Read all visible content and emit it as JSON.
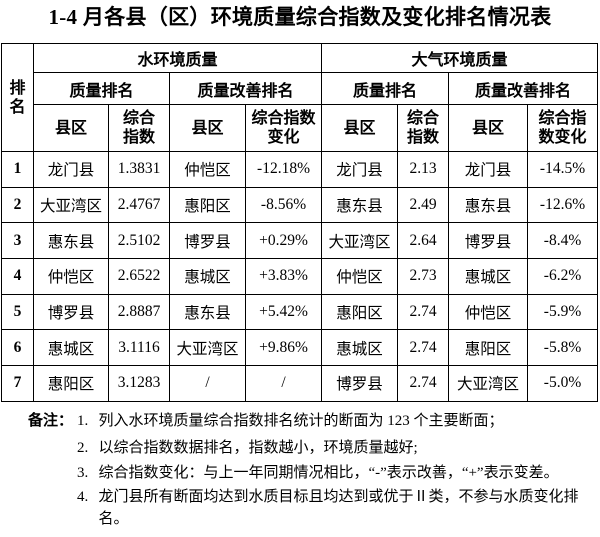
{
  "title": "1-4 月各县（区）环境质量综合指数及变化排名情况表",
  "table": {
    "rank_header": "排\n名",
    "groups": {
      "water": {
        "label": "水环境质量",
        "sub1": "质量排名",
        "sub2": "质量改善排名"
      },
      "air": {
        "label": "大气环境质量",
        "sub1": "质量排名",
        "sub2": "质量改善排名"
      }
    },
    "col_headers": {
      "w_q_county": "县区",
      "w_q_index": "综合\n指数",
      "w_i_county": "县区",
      "w_i_change": "综合指数\n变化",
      "a_q_county": "县区",
      "a_q_index": "综合\n指数",
      "a_i_county": "县区",
      "a_i_change": "综合指\n数变化"
    },
    "rows": [
      {
        "rank": "1",
        "cells": [
          "龙门县",
          "1.3831",
          "仲恺区",
          "-12.18%",
          "龙门县",
          "2.13",
          "龙门县",
          "-14.5%"
        ]
      },
      {
        "rank": "2",
        "cells": [
          "大亚湾区",
          "2.4767",
          "惠阳区",
          "-8.56%",
          "惠东县",
          "2.49",
          "惠东县",
          "-12.6%"
        ]
      },
      {
        "rank": "3",
        "cells": [
          "惠东县",
          "2.5102",
          "博罗县",
          "+0.29%",
          "大亚湾区",
          "2.64",
          "博罗县",
          "-8.4%"
        ]
      },
      {
        "rank": "4",
        "cells": [
          "仲恺区",
          "2.6522",
          "惠城区",
          "+3.83%",
          "仲恺区",
          "2.73",
          "惠城区",
          "-6.2%"
        ]
      },
      {
        "rank": "5",
        "cells": [
          "博罗县",
          "2.8887",
          "惠东县",
          "+5.42%",
          "惠阳区",
          "2.74",
          "仲恺区",
          "-5.9%"
        ]
      },
      {
        "rank": "6",
        "cells": [
          "惠城区",
          "3.1116",
          "大亚湾区",
          "+9.86%",
          "惠城区",
          "2.74",
          "惠阳区",
          "-5.8%"
        ]
      },
      {
        "rank": "7",
        "cells": [
          "惠阳区",
          "3.1283",
          "/",
          "/",
          "博罗县",
          "2.74",
          "大亚湾区",
          "-5.0%"
        ]
      }
    ]
  },
  "notes": {
    "label": "备注：",
    "items": [
      {
        "num": "1.",
        "text": "列入水环境质量综合指数排名统计的断面为 123 个主要断面；"
      },
      {
        "num": "2.",
        "text": "以综合指数数据排名，指数越小，环境质量越好;"
      },
      {
        "num": "3.",
        "text": "综合指数变化：与上一年同期情况相比，“-”表示改善，“+”表示变差。"
      },
      {
        "num": "4.",
        "text": "龙门县所有断面均达到水质目标且均达到或优于Ⅱ类，不参与水质变化排名。"
      }
    ]
  },
  "chart_data": {
    "type": "table",
    "title": "1-4 月各县（区）环境质量综合指数及变化排名情况表",
    "columns": [
      "排名",
      "水环境质量-质量排名-县区",
      "水环境质量-质量排名-综合指数",
      "水环境质量-质量改善排名-县区",
      "水环境质量-质量改善排名-综合指数变化",
      "大气环境质量-质量排名-县区",
      "大气环境质量-质量排名-综合指数",
      "大气环境质量-质量改善排名-县区",
      "大气环境质量-质量改善排名-综合指数变化"
    ],
    "rows": [
      [
        "1",
        "龙门县",
        "1.3831",
        "仲恺区",
        "-12.18%",
        "龙门县",
        "2.13",
        "龙门县",
        "-14.5%"
      ],
      [
        "2",
        "大亚湾区",
        "2.4767",
        "惠阳区",
        "-8.56%",
        "惠东县",
        "2.49",
        "惠东县",
        "-12.6%"
      ],
      [
        "3",
        "惠东县",
        "2.5102",
        "博罗县",
        "+0.29%",
        "大亚湾区",
        "2.64",
        "博罗县",
        "-8.4%"
      ],
      [
        "4",
        "仲恺区",
        "2.6522",
        "惠城区",
        "+3.83%",
        "仲恺区",
        "2.73",
        "惠城区",
        "-6.2%"
      ],
      [
        "5",
        "博罗县",
        "2.8887",
        "惠东县",
        "+5.42%",
        "惠阳区",
        "2.74",
        "仲恺区",
        "-5.9%"
      ],
      [
        "6",
        "惠城区",
        "3.1116",
        "大亚湾区",
        "+9.86%",
        "惠城区",
        "2.74",
        "惠阳区",
        "-5.8%"
      ],
      [
        "7",
        "惠阳区",
        "3.1283",
        "/",
        "/",
        "博罗县",
        "2.74",
        "大亚湾区",
        "-5.0%"
      ]
    ]
  }
}
